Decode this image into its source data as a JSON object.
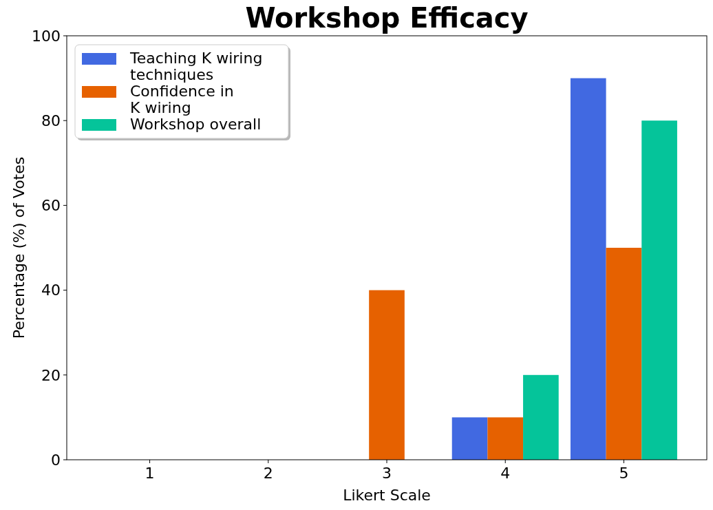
{
  "chart_data": {
    "type": "bar",
    "title": "Workshop Efficacy",
    "xlabel": "Likert Scale",
    "ylabel": "Percentage (%) of Votes",
    "categories": [
      "1",
      "2",
      "3",
      "4",
      "5"
    ],
    "series": [
      {
        "name": "Teaching K wiring\ntechniques",
        "color": "#4169e1",
        "values": [
          0,
          0,
          0,
          10,
          90
        ]
      },
      {
        "name": "Confidence in\nK wiring",
        "color": "#e66100",
        "values": [
          0,
          0,
          40,
          10,
          50
        ]
      },
      {
        "name": "Workshop overall",
        "color": "#05c49a",
        "values": [
          0,
          0,
          0,
          20,
          80
        ]
      }
    ],
    "ylim": [
      0,
      100
    ],
    "yticks": [
      0,
      20,
      40,
      60,
      80,
      100
    ],
    "grid": false,
    "legend": "top left"
  }
}
